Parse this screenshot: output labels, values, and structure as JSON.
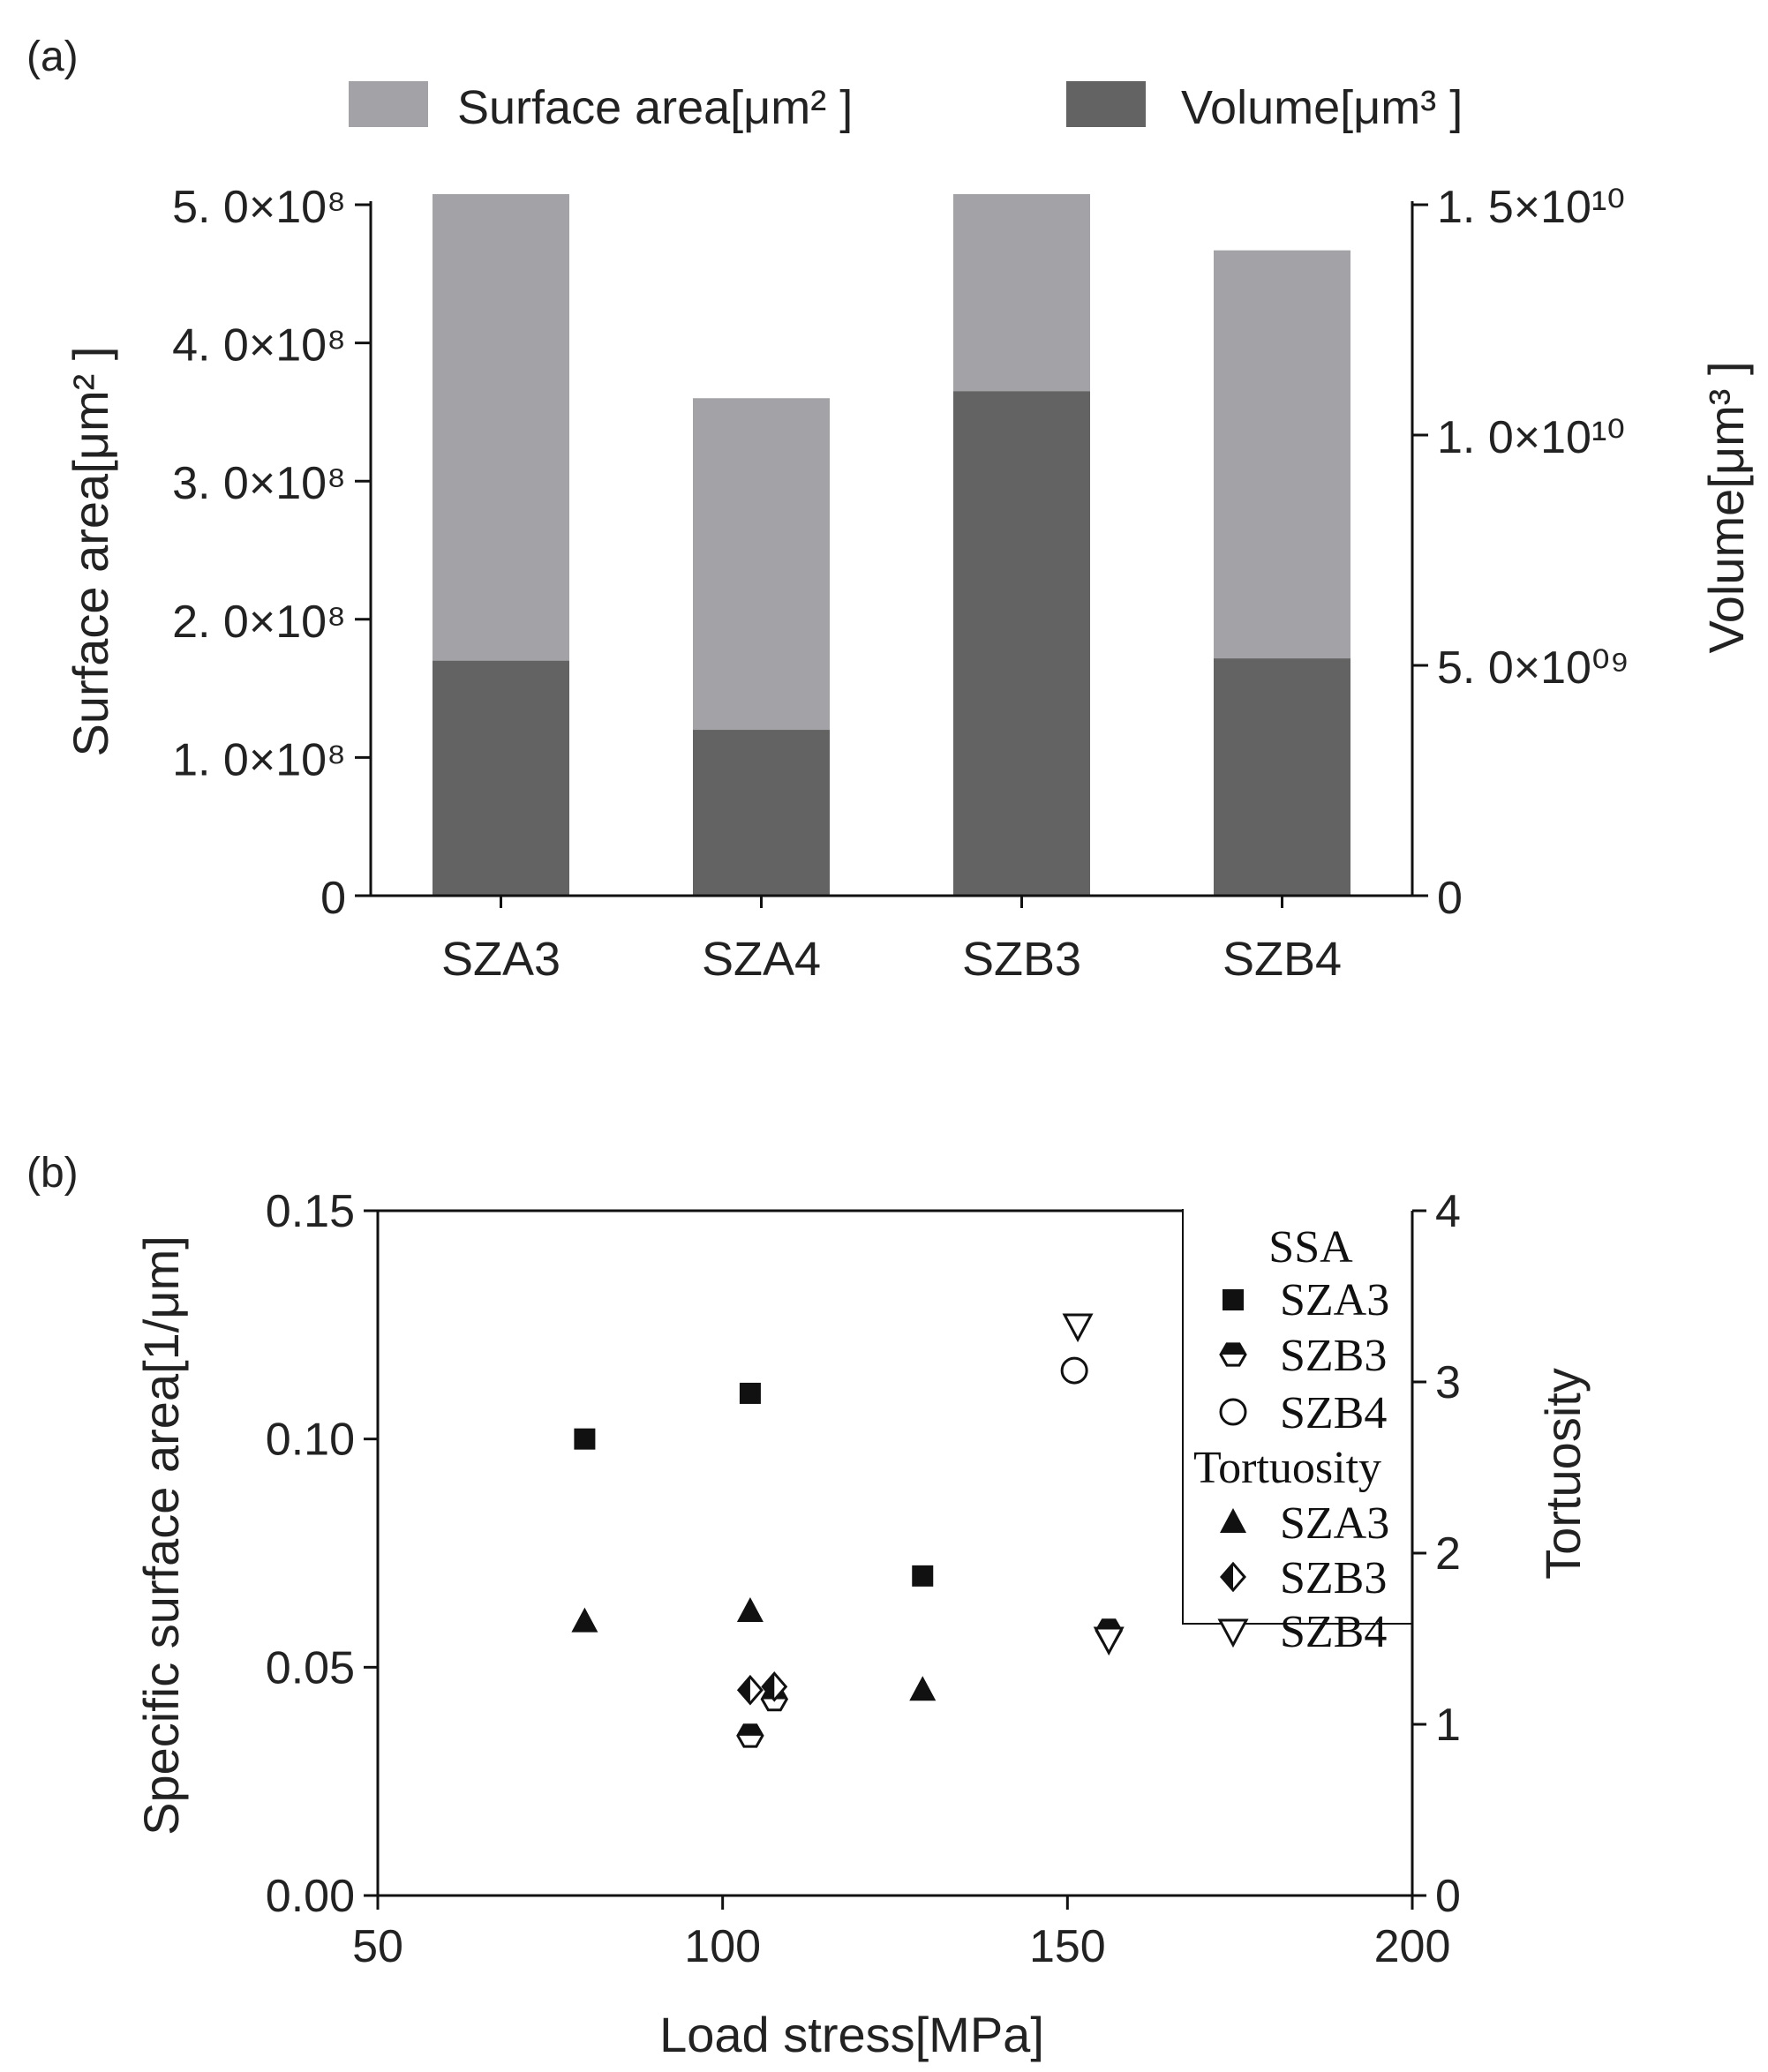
{
  "chart_data": [
    {
      "panel_label": "(a)",
      "type": "bar",
      "categories": [
        "SZA3",
        "SZA4",
        "SZB3",
        "SZB4"
      ],
      "series": [
        {
          "name": "Surface area[μm² ]",
          "axis": "left",
          "color": "#a3a3a7",
          "values": [
            508000000.0,
            360000000.0,
            508000000.0,
            467000000.0
          ]
        },
        {
          "name": "Volume[μm³ ]",
          "axis": "right",
          "color": "#636363",
          "values": [
            5100000000.0,
            3600000000.0,
            10950000000.0,
            5150000000.0
          ]
        }
      ],
      "left_axis": {
        "label": "Surface area[μm² ]",
        "ylim": [
          0,
          500000000.0
        ],
        "ticks": [
          {
            "value": 0,
            "label": "0"
          },
          {
            "value": 100000000.0,
            "label": "1. 0×10⁸"
          },
          {
            "value": 200000000.0,
            "label": "2. 0×10⁸"
          },
          {
            "value": 300000000.0,
            "label": "3. 0×10⁸"
          },
          {
            "value": 400000000.0,
            "label": "4. 0×10⁸"
          },
          {
            "value": 500000000.0,
            "label": "5. 0×10⁸"
          }
        ]
      },
      "right_axis": {
        "label": "Volume[μm³ ]",
        "ylim": [
          0,
          15000000000.0
        ],
        "ticks": [
          {
            "value": 0,
            "label": "0"
          },
          {
            "value": 5000000000.0,
            "label": "5. 0×10⁰⁹"
          },
          {
            "value": 10000000000.0,
            "label": "1. 0×10¹⁰"
          },
          {
            "value": 15000000000.0,
            "label": "1. 5×10¹⁰"
          }
        ]
      },
      "legend": [
        "Surface area[μm² ]",
        "Volume[μm³ ]"
      ]
    },
    {
      "panel_label": "(b)",
      "type": "scatter",
      "xlabel": "Load  stress[MPa]",
      "xlim": [
        50,
        200
      ],
      "x_ticks": [
        50,
        100,
        150,
        200
      ],
      "ylabel": "Specific surface area[1/μm]",
      "ylim": [
        0,
        0.15
      ],
      "y_ticks": [
        "0.00",
        "0.05",
        "0.10",
        "0.15"
      ],
      "y2label": "Tortuosity",
      "y2lim": [
        0,
        4
      ],
      "y2_ticks": [
        "0",
        "1",
        "2",
        "3",
        "4"
      ],
      "legend_groups": [
        {
          "title": "SSA",
          "items": [
            {
              "label": "SZA3",
              "marker": "square-filled"
            },
            {
              "label": "SZB3",
              "marker": "hexagon-half"
            },
            {
              "label": "SZB4",
              "marker": "circle-open"
            }
          ]
        },
        {
          "title": "Tortuosity",
          "items": [
            {
              "label": "SZA3",
              "marker": "triangle-up-filled"
            },
            {
              "label": "SZB3",
              "marker": "diamond-half"
            },
            {
              "label": "SZB4",
              "marker": "triangle-down-open"
            }
          ]
        }
      ],
      "series": [
        {
          "name": "SSA SZA3",
          "axis": "left",
          "marker": "square-filled",
          "points": [
            [
              80,
              0.1
            ],
            [
              104,
              0.11
            ],
            [
              129,
              0.07
            ]
          ]
        },
        {
          "name": "SSA SZB3",
          "axis": "left",
          "marker": "hexagon-half",
          "points": [
            [
              104,
              0.035
            ],
            [
              107.5,
              0.043
            ],
            [
              156,
              0.058
            ]
          ]
        },
        {
          "name": "SSA SZB4",
          "axis": "left",
          "marker": "circle-open",
          "points": [
            [
              151,
              0.115
            ]
          ]
        },
        {
          "name": "Tortuosity SZA3",
          "axis": "right",
          "marker": "triangle-up-filled",
          "points": [
            [
              80,
              1.6
            ],
            [
              104,
              1.66
            ],
            [
              129,
              1.2
            ]
          ]
        },
        {
          "name": "Tortuosity SZB3",
          "axis": "right",
          "marker": "diamond-half",
          "points": [
            [
              104,
              1.2
            ],
            [
              107.5,
              1.22
            ]
          ]
        },
        {
          "name": "Tortuosity SZB4",
          "axis": "right",
          "marker": "triangle-down-open",
          "points": [
            [
              151.5,
              3.33
            ],
            [
              156,
              1.5
            ]
          ]
        }
      ]
    }
  ]
}
